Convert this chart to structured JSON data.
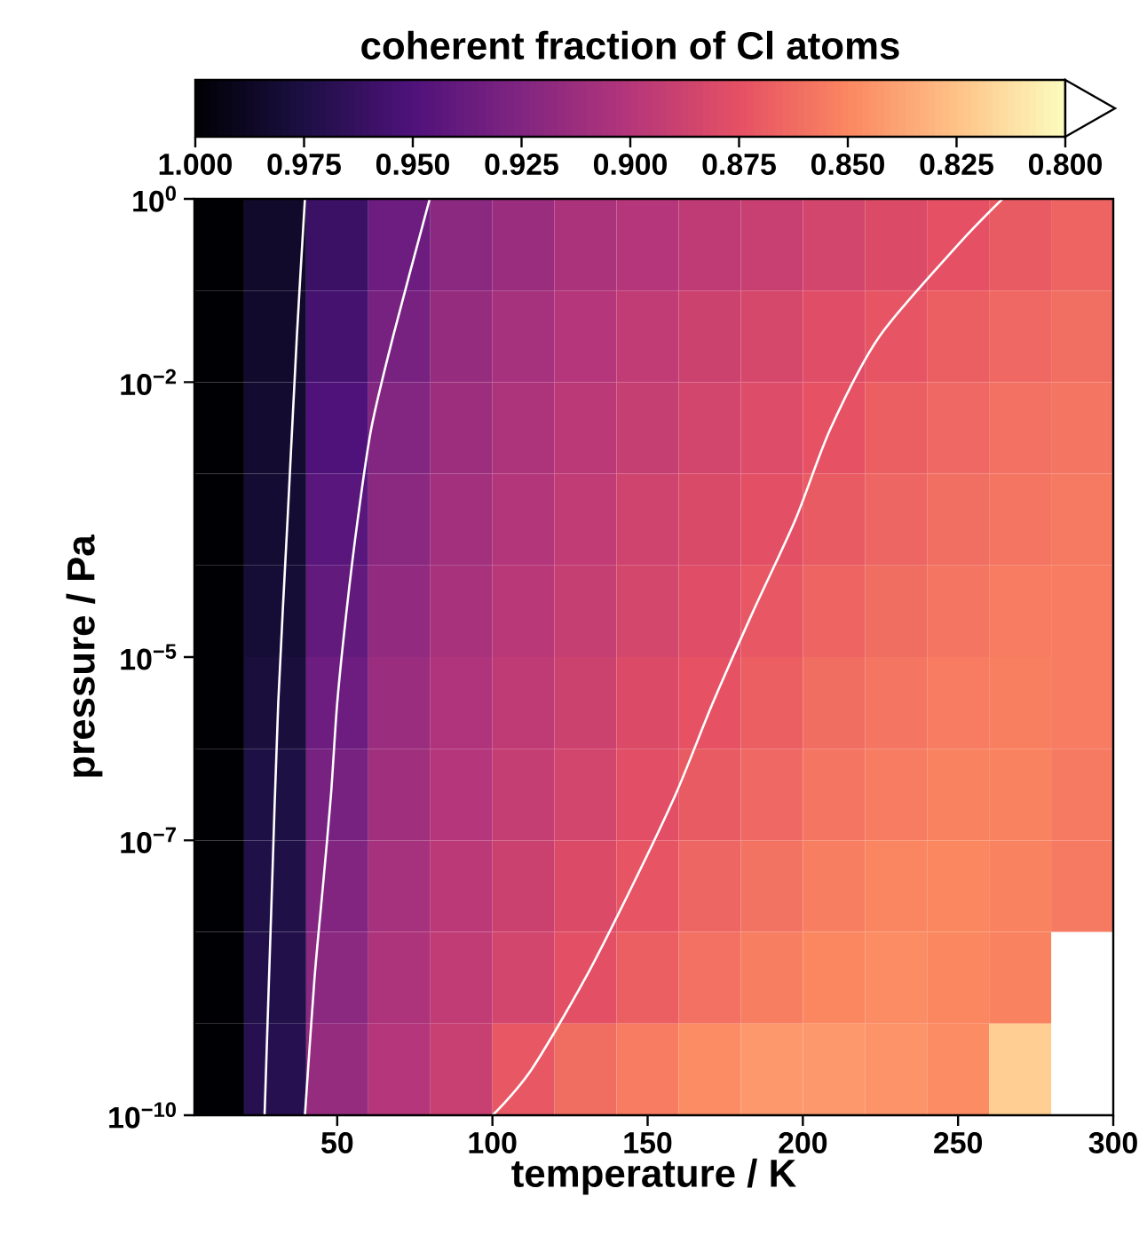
{
  "chart_data": {
    "type": "heatmap",
    "clabel": "coherent fraction of Cl atoms",
    "xlabel": "temperature / K",
    "ylabel": "pressure / Pa",
    "log": "y",
    "xlim": [
      4,
      300
    ],
    "xticks": [
      50,
      100,
      150,
      200,
      250,
      300
    ],
    "ylim": [
      1e-10,
      1
    ],
    "yticks": [
      {
        "value": 1,
        "label": "10$^{0}$"
      },
      {
        "value": 0.01,
        "label": "10$^{−2}$"
      },
      {
        "value": 1e-05,
        "label": "10$^{−5}$"
      },
      {
        "value": 1e-07,
        "label": "10$^{−7}$"
      },
      {
        "value": 1e-10,
        "label": "10$^{−10}$"
      }
    ],
    "clim": [
      1.0,
      0.8
    ],
    "cticks": [
      {
        "value": 1.0,
        "label": "1.000"
      },
      {
        "value": 0.975,
        "label": "0.975"
      },
      {
        "value": 0.95,
        "label": "0.950"
      },
      {
        "value": 0.925,
        "label": "0.925"
      },
      {
        "value": 0.9,
        "label": "0.900"
      },
      {
        "value": 0.875,
        "label": "0.875"
      },
      {
        "value": 0.85,
        "label": "0.850"
      },
      {
        "value": 0.825,
        "label": "0.825"
      },
      {
        "value": 0.8,
        "label": "0.800"
      }
    ],
    "x": [
      10,
      30,
      50,
      70,
      90,
      110,
      130,
      150,
      170,
      190,
      210,
      230,
      250,
      270,
      290
    ],
    "y": [
      0.31623,
      0.031623,
      0.0031623,
      0.00031623,
      3.1623e-05,
      3.1623e-06,
      3.1623e-07,
      3.1623e-08,
      3.1623e-09,
      3.1623e-10
    ],
    "cells": [
      [
        1.0,
        0.985,
        0.96,
        0.935,
        0.92,
        0.913,
        0.905,
        0.9,
        0.895,
        0.89,
        0.885,
        0.88,
        0.875,
        0.87,
        0.866
      ],
      [
        1.0,
        0.984,
        0.955,
        0.93,
        0.915,
        0.907,
        0.9,
        0.894,
        0.888,
        0.883,
        0.878,
        0.873,
        0.868,
        0.864,
        0.861
      ],
      [
        1.0,
        0.983,
        0.95,
        0.924,
        0.912,
        0.904,
        0.897,
        0.891,
        0.885,
        0.879,
        0.874,
        0.868,
        0.864,
        0.86,
        0.858
      ],
      [
        1.0,
        0.982,
        0.945,
        0.92,
        0.909,
        0.901,
        0.894,
        0.887,
        0.881,
        0.876,
        0.87,
        0.865,
        0.861,
        0.858,
        0.856
      ],
      [
        1.0,
        0.98,
        0.94,
        0.917,
        0.906,
        0.898,
        0.891,
        0.884,
        0.878,
        0.872,
        0.866,
        0.862,
        0.858,
        0.855,
        0.855
      ],
      [
        1.0,
        0.978,
        0.935,
        0.913,
        0.903,
        0.895,
        0.888,
        0.88,
        0.874,
        0.868,
        0.862,
        0.858,
        0.855,
        0.853,
        0.855
      ],
      [
        1.0,
        0.975,
        0.93,
        0.91,
        0.9,
        0.892,
        0.885,
        0.877,
        0.87,
        0.864,
        0.858,
        0.855,
        0.852,
        0.852,
        0.856
      ],
      [
        1.0,
        0.973,
        0.925,
        0.907,
        0.897,
        0.889,
        0.88,
        0.873,
        0.865,
        0.859,
        0.854,
        0.851,
        0.85,
        0.852,
        0.856
      ],
      [
        1.0,
        0.972,
        0.92,
        0.904,
        0.894,
        0.885,
        0.876,
        0.868,
        0.86,
        0.854,
        0.85,
        0.848,
        0.85,
        0.852,
        null
      ],
      [
        1.0,
        0.97,
        0.915,
        0.9,
        0.89,
        0.872,
        0.862,
        0.855,
        0.848,
        0.843,
        0.843,
        0.845,
        0.848,
        0.82,
        null
      ]
    ],
    "series": [
      {
        "type": "line",
        "color": "#ffffff",
        "x": [
          39.6,
          37,
          34,
          31,
          29,
          26.6
        ],
        "values": [
          1,
          0.031623,
          0.00031623,
          3.1623e-06,
          3.1623e-08,
          1e-10
        ]
      },
      {
        "type": "line",
        "color": "#ffffff",
        "x": [
          79.8,
          68,
          61,
          56.6,
          53,
          50,
          48,
          45.4,
          42.7,
          39.6
        ],
        "values": [
          1,
          0.031623,
          0.0031623,
          0.00031623,
          3.1623e-05,
          3.1623e-06,
          3.1623e-07,
          3.1623e-08,
          3.1623e-09,
          1e-10
        ]
      },
      {
        "type": "line",
        "color": "#ffffff",
        "x": [
          264.3,
          250,
          224.7,
          209,
          197.6,
          184,
          171,
          159,
          145,
          130,
          112.6,
          100.1
        ],
        "values": [
          1,
          0.31623,
          0.031623,
          0.0031623,
          0.00031623,
          3.1623e-05,
          3.1623e-06,
          3.1623e-07,
          3.1623e-08,
          3.1623e-09,
          3.1623e-10,
          1e-10
        ]
      }
    ]
  }
}
